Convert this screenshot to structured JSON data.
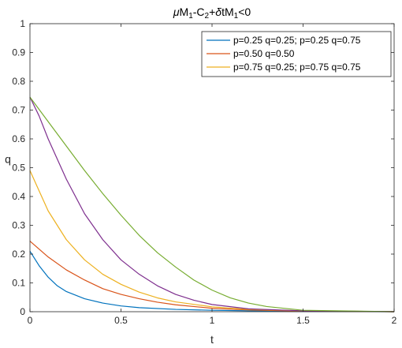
{
  "chart_data": {
    "type": "line",
    "title": "μM1-C2+δtM1<0",
    "title_parts": [
      "μ",
      "M",
      "1",
      "-C",
      "2",
      "+",
      "δ",
      "tM",
      "1",
      "<0"
    ],
    "xlabel": "t",
    "ylabel": "q",
    "xlim": [
      0,
      2
    ],
    "ylim": [
      0,
      1
    ],
    "xticks": [
      "0",
      "0.5",
      "1",
      "1.5",
      "2"
    ],
    "yticks": [
      "0",
      "0.1",
      "0.2",
      "0.3",
      "0.4",
      "0.5",
      "0.6",
      "0.7",
      "0.8",
      "0.9",
      "1"
    ],
    "grid": false,
    "legend_position": "top-right",
    "legend": [
      {
        "label": "p=0.25 q=0.25; p=0.25 q=0.75",
        "color": "#0072BD"
      },
      {
        "label": "p=0.50 q=0.50",
        "color": "#D95319"
      },
      {
        "label": "p=0.75 q=0.25; p=0.75 q=0.75",
        "color": "#EDB120"
      }
    ],
    "series": [
      {
        "color": "#0072BD",
        "x": [
          0,
          0.05,
          0.1,
          0.15,
          0.2,
          0.3,
          0.4,
          0.5,
          0.6,
          0.8,
          1.0,
          1.2,
          1.5,
          2.0
        ],
        "y": [
          0.21,
          0.16,
          0.12,
          0.09,
          0.07,
          0.045,
          0.03,
          0.02,
          0.014,
          0.008,
          0.005,
          0.003,
          0.001,
          0.0
        ]
      },
      {
        "color": "#D95319",
        "x": [
          0,
          0.1,
          0.2,
          0.3,
          0.4,
          0.5,
          0.6,
          0.7,
          0.8,
          1.0,
          1.2,
          1.5,
          2.0
        ],
        "y": [
          0.245,
          0.19,
          0.145,
          0.11,
          0.08,
          0.06,
          0.045,
          0.033,
          0.024,
          0.012,
          0.006,
          0.002,
          0.0
        ]
      },
      {
        "color": "#EDB120",
        "x": [
          0,
          0.05,
          0.1,
          0.2,
          0.3,
          0.4,
          0.5,
          0.6,
          0.7,
          0.8,
          1.0,
          1.2,
          1.5,
          2.0
        ],
        "y": [
          0.49,
          0.42,
          0.35,
          0.25,
          0.18,
          0.13,
          0.095,
          0.068,
          0.048,
          0.034,
          0.017,
          0.008,
          0.003,
          0.0
        ]
      },
      {
        "color": "#7E2F8E",
        "x": [
          0,
          0.05,
          0.1,
          0.2,
          0.3,
          0.4,
          0.5,
          0.6,
          0.7,
          0.8,
          0.9,
          1.0,
          1.2,
          1.5,
          2.0
        ],
        "y": [
          0.745,
          0.68,
          0.6,
          0.46,
          0.34,
          0.25,
          0.18,
          0.13,
          0.09,
          0.06,
          0.04,
          0.025,
          0.01,
          0.003,
          0.0
        ]
      },
      {
        "color": "#77AC30",
        "x": [
          0,
          0.1,
          0.2,
          0.3,
          0.4,
          0.5,
          0.6,
          0.7,
          0.8,
          0.9,
          1.0,
          1.1,
          1.2,
          1.3,
          1.5,
          2.0
        ],
        "y": [
          0.745,
          0.66,
          0.575,
          0.49,
          0.41,
          0.335,
          0.265,
          0.205,
          0.155,
          0.11,
          0.075,
          0.048,
          0.03,
          0.018,
          0.005,
          0.0
        ]
      }
    ]
  }
}
